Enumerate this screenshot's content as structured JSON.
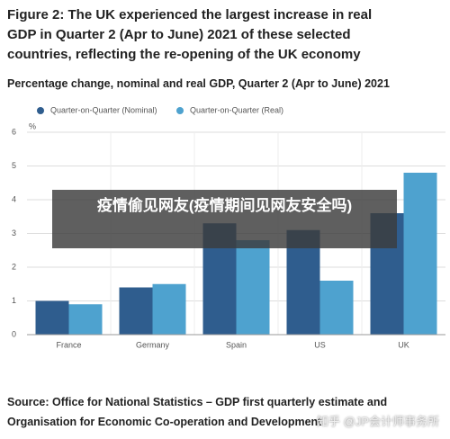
{
  "chart_data": {
    "type": "bar",
    "title": "Figure 2: The UK experienced the largest increase in real GDP in Quarter 2 (Apr to June) 2021 of these selected countries, reflecting the re-opening of the UK economy",
    "subtitle": "Percentage change, nominal and real GDP, Quarter 2 (Apr to June) 2021",
    "ylabel": "%",
    "categories": [
      "France",
      "Germany",
      "Spain",
      "US",
      "UK"
    ],
    "series": [
      {
        "name": "Quarter-on-Quarter (Nominal)",
        "color": "#2f5d8e",
        "values": [
          1.0,
          1.4,
          3.3,
          3.1,
          3.6
        ]
      },
      {
        "name": "Quarter-on-Quarter (Real)",
        "color": "#4ea2cf",
        "values": [
          0.9,
          1.5,
          2.8,
          1.6,
          4.8
        ]
      }
    ],
    "ylim": [
      0,
      6
    ],
    "yticks": [
      0,
      1,
      2,
      3,
      4,
      5,
      6
    ],
    "grid": true,
    "source": "Source: Office for National Statistics – GDP first quarterly estimate and Organisation for Economic Co-operation and Development"
  },
  "overlay": "疫情偷见网友(疫情期间见网友安全吗)",
  "watermark": "知乎 @JP会计师事务所"
}
